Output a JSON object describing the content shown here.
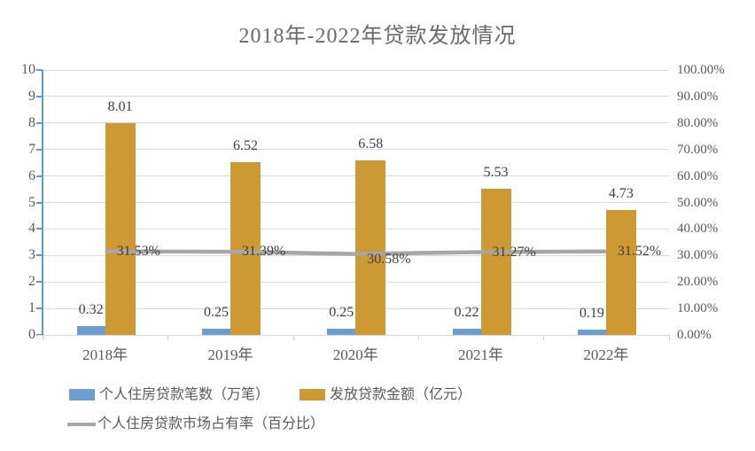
{
  "title": "2018年-2022年贷款发放情况",
  "chart_data": {
    "type": "combo (bar + line)",
    "categories": [
      "2018年",
      "2019年",
      "2020年",
      "2021年",
      "2022年"
    ],
    "series": [
      {
        "name": "个人住房贷款笔数（万笔）",
        "type": "bar",
        "axis": "left",
        "color": "#6d9ecf",
        "values": [
          0.32,
          0.25,
          0.25,
          0.22,
          0.19
        ],
        "labels": [
          "0.32",
          "0.25",
          "0.25",
          "0.22",
          "0.19"
        ]
      },
      {
        "name": "发放贷款金额（亿元）",
        "type": "bar",
        "axis": "left",
        "color": "#cc9933",
        "values": [
          8.01,
          6.52,
          6.58,
          5.53,
          4.73
        ],
        "labels": [
          "8.01",
          "6.52",
          "6.58",
          "5.53",
          "4.73"
        ]
      },
      {
        "name": "个人住房贷款市场占有率（百分比）",
        "type": "line",
        "axis": "right",
        "color": "#a6a6a6",
        "values": [
          31.53,
          31.39,
          30.58,
          31.27,
          31.52
        ],
        "labels": [
          "31.53%",
          "31.39%",
          "30.58%",
          "31.27%",
          "31.52%"
        ]
      }
    ],
    "left_axis": {
      "min": 0,
      "max": 10,
      "step": 1,
      "ticks": [
        "10",
        "9",
        "8",
        "7",
        "6",
        "5",
        "4",
        "3",
        "2",
        "1",
        "0"
      ]
    },
    "right_axis": {
      "min": 0,
      "max": 100,
      "step": 10,
      "ticks": [
        "100.00%",
        "90.00%",
        "80.00%",
        "70.00%",
        "60.00%",
        "50.00%",
        "40.00%",
        "30.00%",
        "20.00%",
        "10.00%",
        "0.00%"
      ]
    },
    "grid": "horizontal",
    "legend_position": "bottom"
  },
  "colors": {
    "bar_blue": "#6d9ecf",
    "bar_gold": "#cc9933",
    "line_gray": "#a6a6a6",
    "axis_blue": "#5b9bd5",
    "gridline": "#d9d9d9",
    "label_text": "#3f3f3f",
    "axis_text": "#595959",
    "title_text": "#6a6a6a"
  }
}
